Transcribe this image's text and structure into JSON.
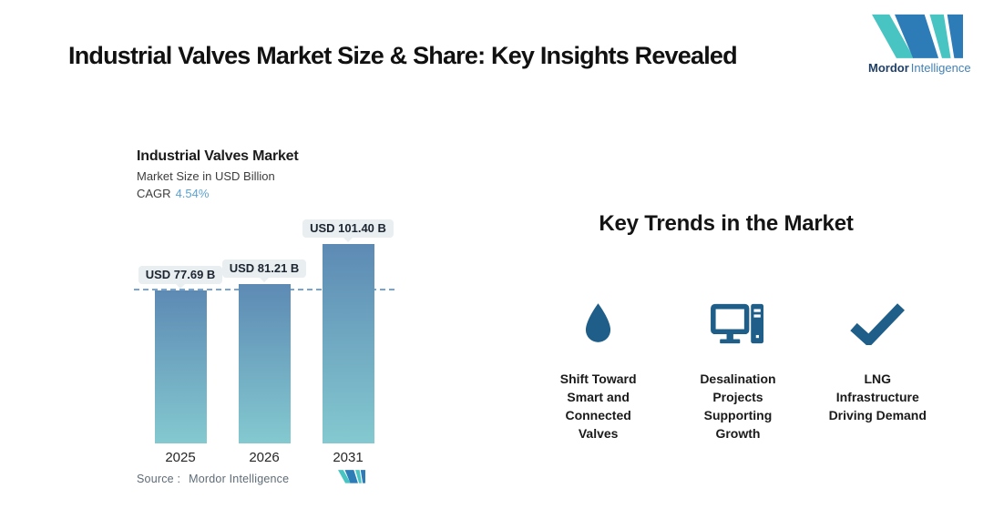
{
  "page": {
    "title": "Industrial Valves Market Size & Share: Key Insights Revealed"
  },
  "brand": {
    "name_bold": "Mordor",
    "name_light": "Intelligence"
  },
  "colors": {
    "brand_teal": "#48c4c3",
    "brand_blue": "#2d7cb7",
    "icon_blue": "#1e5e88",
    "dashed_line": "#76a5d4",
    "cagr_value": "#5ba3d2"
  },
  "chart": {
    "title": "Industrial Valves Market",
    "subtitle": "Market Size in USD Billion",
    "cagr_label": "CAGR",
    "cagr_value": "4.54%",
    "source_label": "Source :",
    "source_value": "Mordor Intelligence"
  },
  "chart_data": {
    "type": "bar",
    "title": "Industrial Valves Market",
    "ylabel": "Market Size in USD Billion",
    "cagr": "4.54%",
    "categories": [
      "2025",
      "2026",
      "2031"
    ],
    "values": [
      77.69,
      81.21,
      101.4
    ],
    "labels": [
      "USD 77.69 B",
      "USD 81.21 B",
      "USD 101.40 B"
    ],
    "unit": "USD Billion",
    "reference_line_value": 77.69,
    "bar_gradient": [
      "#5d8ab4",
      "#84c9d0"
    ],
    "grid": false,
    "legend": false
  },
  "trends": {
    "heading": "Key Trends in the Market",
    "items": [
      {
        "icon": "water-drop-icon",
        "label": "Shift Toward\nSmart and\nConnected\nValves"
      },
      {
        "icon": "desktop-computer-icon",
        "label": "Desalination\nProjects\nSupporting\nGrowth"
      },
      {
        "icon": "checkmark-icon",
        "label": "LNG\nInfrastructure\nDriving Demand"
      }
    ]
  }
}
